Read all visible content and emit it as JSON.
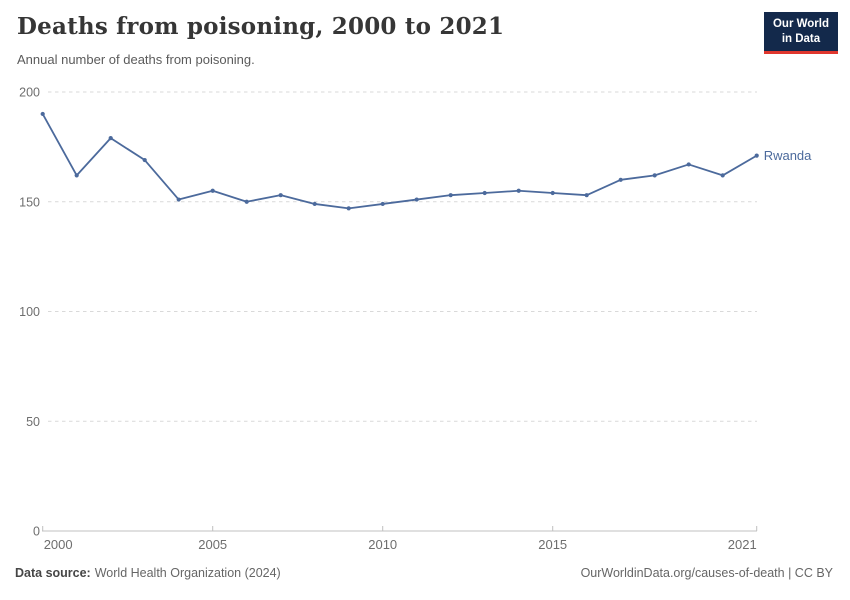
{
  "header": {
    "title": "Deaths from poisoning, 2000 to 2021",
    "subtitle": "Annual number of deaths from poisoning."
  },
  "logo": {
    "line1": "Our World",
    "line2": "in Data",
    "bg_color": "#13294b",
    "accent_color": "#e0372e"
  },
  "chart_data": {
    "type": "line",
    "title": "Deaths from poisoning, 2000 to 2021",
    "x": [
      2000,
      2001,
      2002,
      2003,
      2004,
      2005,
      2006,
      2007,
      2008,
      2009,
      2010,
      2011,
      2012,
      2013,
      2014,
      2015,
      2016,
      2017,
      2018,
      2019,
      2020,
      2021
    ],
    "series": [
      {
        "name": "Rwanda",
        "color": "#4c6a9c",
        "values": [
          190,
          162,
          179,
          169,
          151,
          155,
          150,
          153,
          149,
          147,
          149,
          151,
          153,
          154,
          155,
          154,
          153,
          160,
          162,
          167,
          162,
          171
        ]
      }
    ],
    "ylim": [
      0,
      200
    ],
    "yticks": [
      0,
      50,
      100,
      150,
      200
    ],
    "xticks": [
      2000,
      2005,
      2010,
      2015,
      2021
    ],
    "xlabel": "",
    "ylabel": "",
    "grid": "horizontal-dashed",
    "legend_position": "end-of-line-label"
  },
  "footer": {
    "source_label": "Data source:",
    "source_value": "World Health Organization (2024)",
    "credit": "OurWorldinData.org/causes-of-death | CC BY"
  }
}
